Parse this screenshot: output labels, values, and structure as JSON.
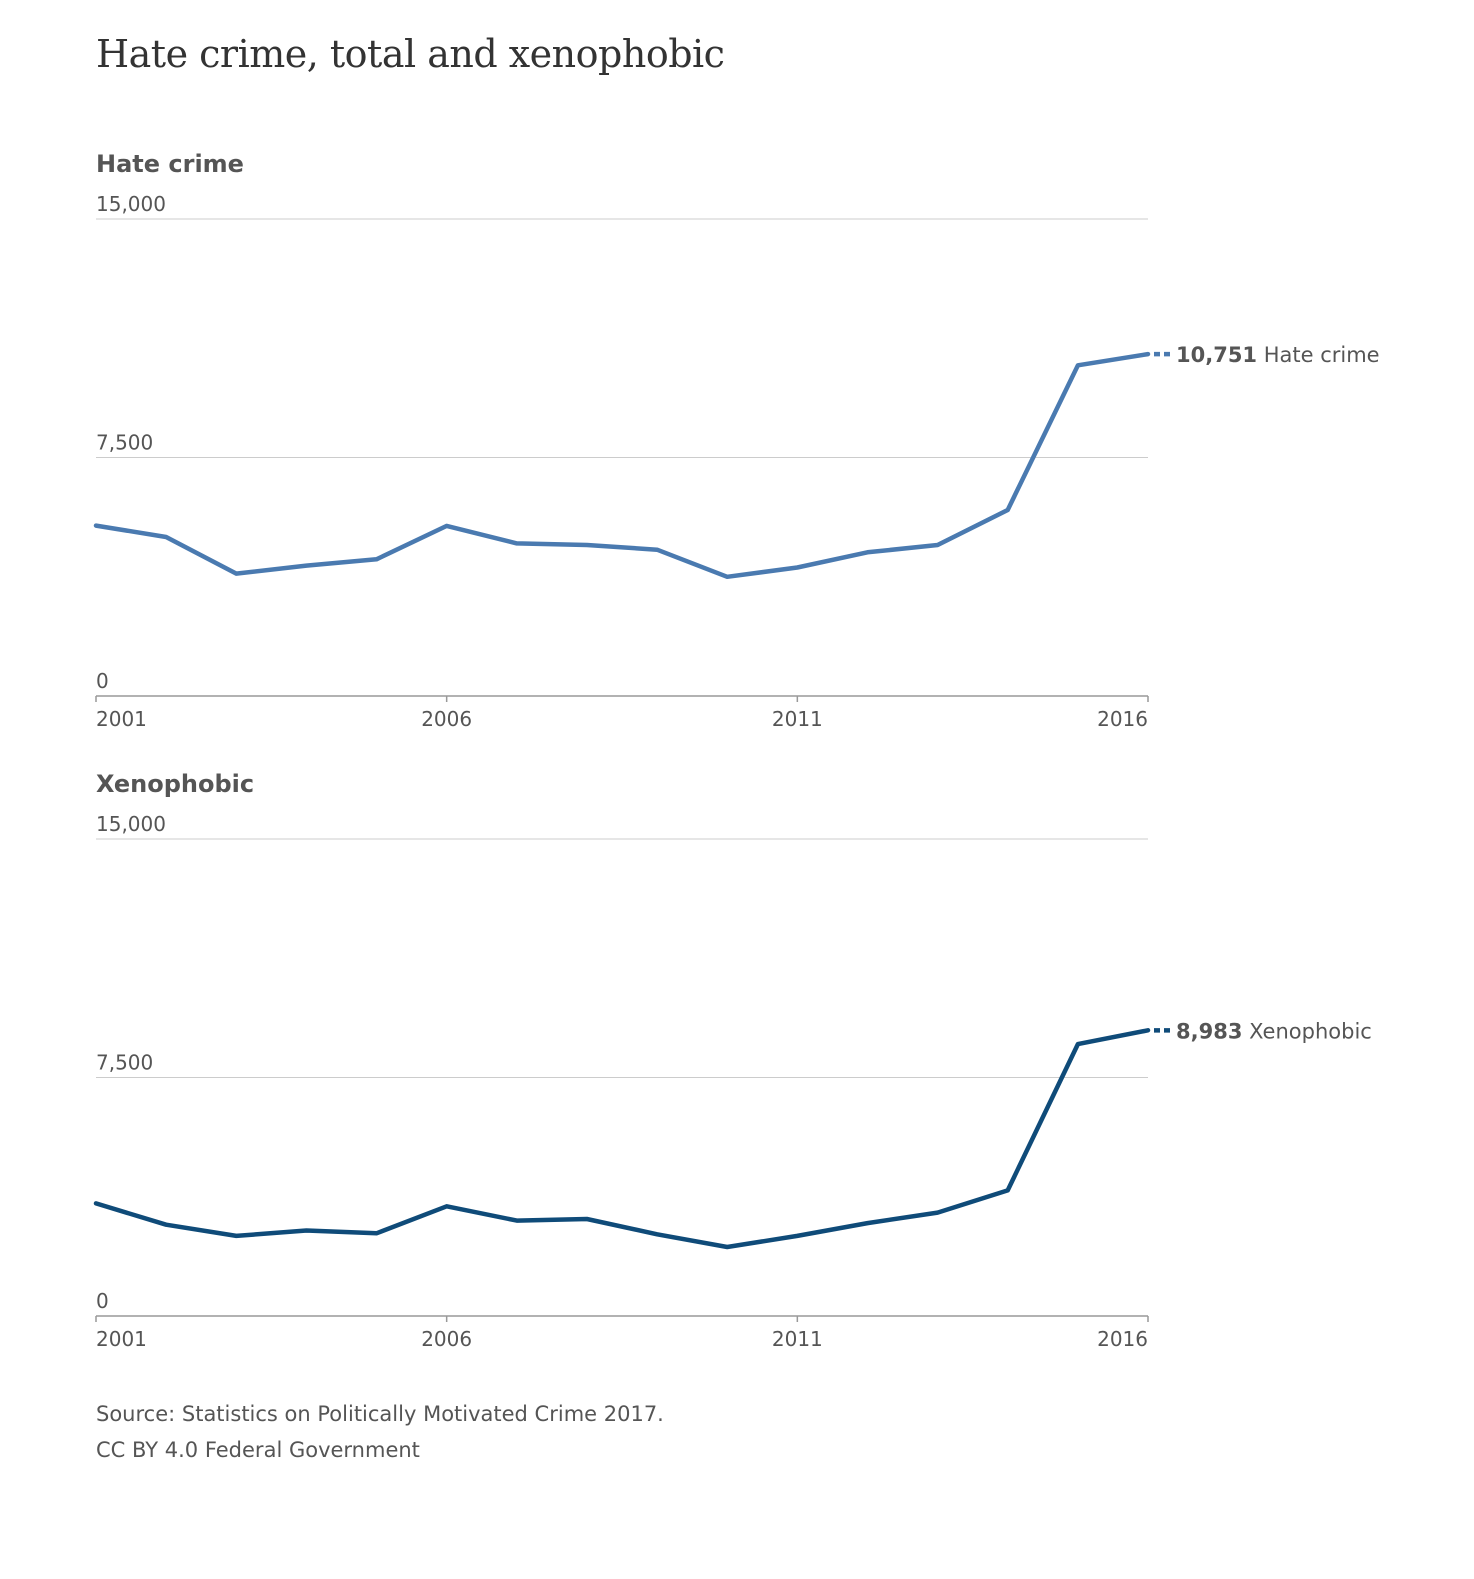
{
  "title": "Hate crime, total and xenophobic",
  "source": {
    "line1": "Source: Statistics on Politically Motivated Crime 2017.",
    "line2": "CC BY 4.0 Federal Government"
  },
  "chart_data": [
    {
      "type": "line",
      "title": "Hate crime",
      "x": [
        2001,
        2002,
        2003,
        2004,
        2005,
        2006,
        2007,
        2008,
        2009,
        2010,
        2011,
        2012,
        2013,
        2014,
        2015,
        2016
      ],
      "series": [
        {
          "name": "Hate crime",
          "color": "#4a7ab0",
          "values": [
            5360,
            5000,
            3850,
            4100,
            4300,
            5350,
            4800,
            4750,
            4600,
            3750,
            4040,
            4520,
            4750,
            5850,
            10400,
            10751
          ]
        }
      ],
      "end_label": {
        "value": "10,751",
        "text": "Hate crime"
      },
      "ylim": [
        0,
        15000
      ],
      "y_ticks": [
        "15,000",
        "7,500",
        "0"
      ],
      "y_tick_values": [
        15000,
        7500,
        0
      ],
      "x_ticks": [
        "2001",
        "2006",
        "2011",
        "2016"
      ],
      "x_tick_values": [
        2001,
        2006,
        2011,
        2016
      ],
      "grid": true,
      "legend": "none"
    },
    {
      "type": "line",
      "title": "Xenophobic",
      "x": [
        2001,
        2002,
        2003,
        2004,
        2005,
        2006,
        2007,
        2008,
        2009,
        2010,
        2011,
        2012,
        2013,
        2014,
        2015,
        2016
      ],
      "series": [
        {
          "name": "Xenophobic",
          "color": "#0f4b79",
          "values": [
            3540,
            2870,
            2520,
            2690,
            2600,
            3450,
            3000,
            3050,
            2570,
            2170,
            2520,
            2920,
            3250,
            3950,
            8550,
            8983
          ]
        }
      ],
      "end_label": {
        "value": "8,983",
        "text": "Xenophobic"
      },
      "ylim": [
        0,
        15000
      ],
      "y_ticks": [
        "15,000",
        "7,500",
        "0"
      ],
      "y_tick_values": [
        15000,
        7500,
        0
      ],
      "x_ticks": [
        "2001",
        "2006",
        "2011",
        "2016"
      ],
      "x_tick_values": [
        2001,
        2006,
        2011,
        2016
      ],
      "grid": true,
      "legend": "none"
    }
  ]
}
